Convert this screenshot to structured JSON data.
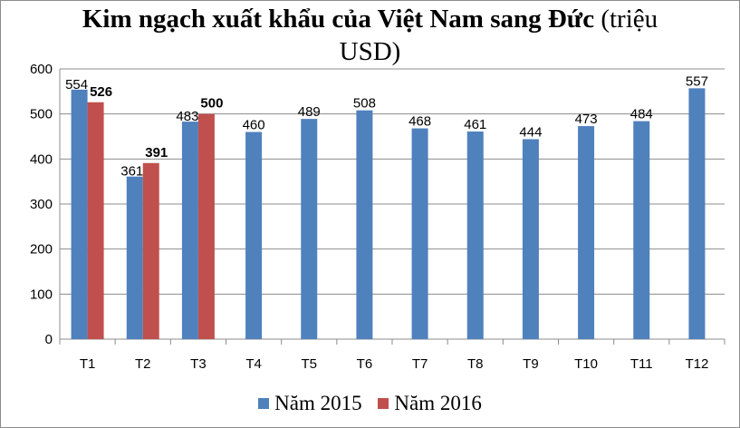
{
  "chart_data": {
    "type": "bar",
    "title_bold": "Kim ngạch xuất khẩu của Việt Nam sang Đức",
    "title_rest": " (triệu",
    "title_line2": "USD)",
    "categories": [
      "T1",
      "T2",
      "T3",
      "T4",
      "T5",
      "T6",
      "T7",
      "T8",
      "T9",
      "T10",
      "T11",
      "T12"
    ],
    "series": [
      {
        "name": "Năm 2015",
        "color": "#4f81bd",
        "values": [
          554,
          361,
          483,
          460,
          489,
          508,
          468,
          461,
          444,
          473,
          484,
          557
        ],
        "label_style": "normal"
      },
      {
        "name": "Năm 2016",
        "color": "#c0504d",
        "values": [
          526,
          391,
          500,
          null,
          null,
          null,
          null,
          null,
          null,
          null,
          null,
          null
        ],
        "label_style": "bold"
      }
    ],
    "ylim": [
      0,
      600
    ],
    "yticks": [
      0,
      100,
      200,
      300,
      400,
      500,
      600
    ],
    "grid": true,
    "legend_position": "bottom"
  }
}
